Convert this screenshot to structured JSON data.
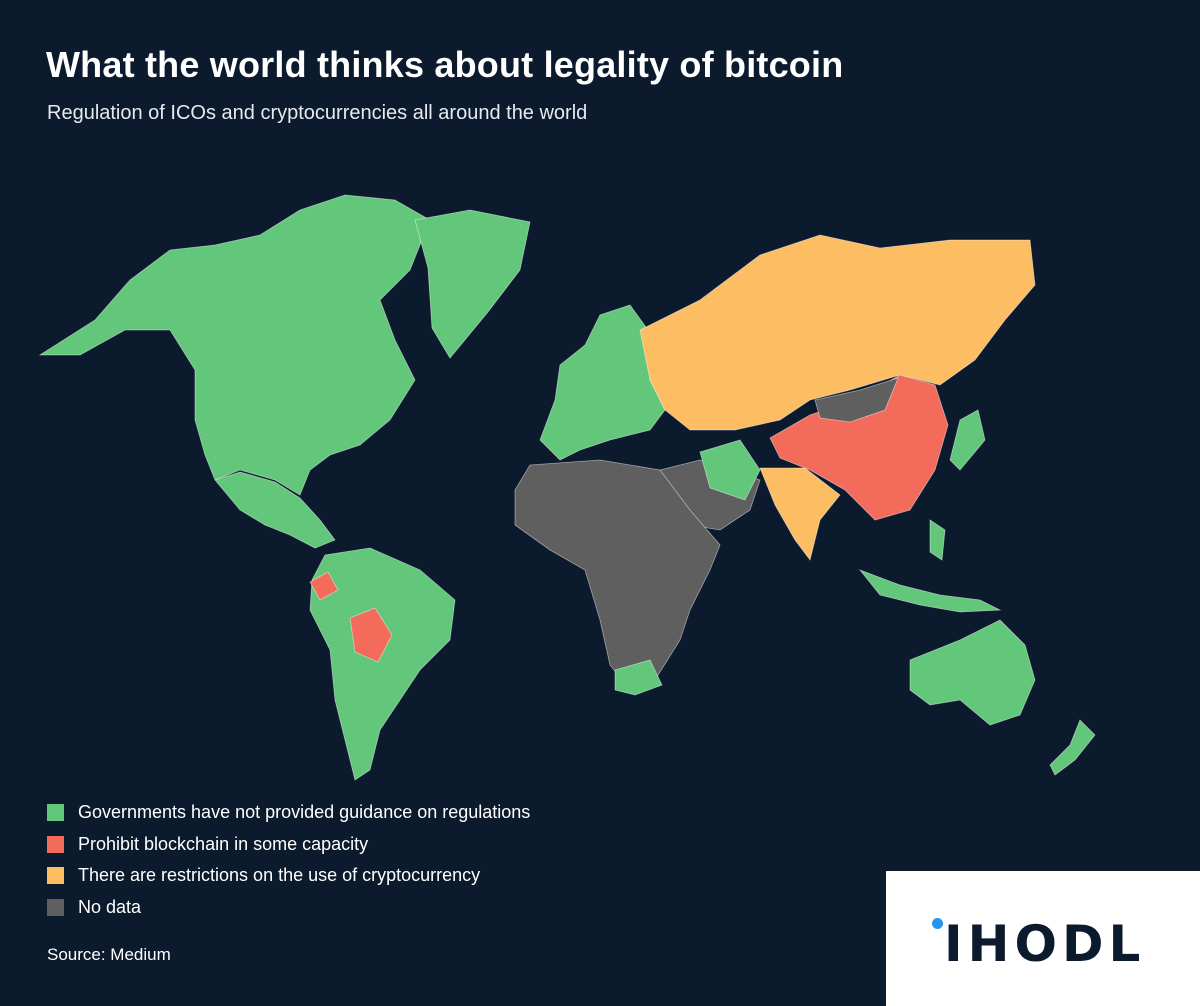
{
  "header": {
    "title": "What the world thinks about legality of bitcoin",
    "subtitle": "Regulation of ICOs and cryptocurrencies all around the world"
  },
  "colors": {
    "background": "#0b1a2c",
    "no_guidance": "#63c77b",
    "prohibit": "#f26b5b",
    "restrictions": "#fdbd62",
    "no_data": "#5f5f60"
  },
  "legend": {
    "items": [
      {
        "label": "Governments have not provided guidance on regulations",
        "color": "#63c77b"
      },
      {
        "label": "Prohibit blockchain in some capacity",
        "color": "#f26b5b"
      },
      {
        "label": "There are restrictions on the use of cryptocurrency",
        "color": "#fdbd62"
      },
      {
        "label": "No data",
        "color": "#5f5f60"
      }
    ]
  },
  "source": "Source:  Medium",
  "brand": {
    "logo_text": "IHODL"
  },
  "regions": [
    {
      "name": "north-america",
      "category": "no_guidance"
    },
    {
      "name": "greenland",
      "category": "no_guidance"
    },
    {
      "name": "mexico-central-america",
      "category": "no_guidance"
    },
    {
      "name": "south-america",
      "category": "no_guidance"
    },
    {
      "name": "ecuador",
      "category": "prohibit"
    },
    {
      "name": "bolivia",
      "category": "prohibit"
    },
    {
      "name": "europe",
      "category": "no_guidance"
    },
    {
      "name": "russia-central-asia",
      "category": "restrictions"
    },
    {
      "name": "china",
      "category": "prohibit"
    },
    {
      "name": "india",
      "category": "restrictions"
    },
    {
      "name": "africa",
      "category": "no_data"
    },
    {
      "name": "middle-east",
      "category": "no_data"
    },
    {
      "name": "mongolia",
      "category": "no_data"
    },
    {
      "name": "iran",
      "category": "no_guidance"
    },
    {
      "name": "south-africa",
      "category": "no_guidance"
    },
    {
      "name": "southeast-asia",
      "category": "no_guidance"
    },
    {
      "name": "japan",
      "category": "no_guidance"
    },
    {
      "name": "australia",
      "category": "no_guidance"
    },
    {
      "name": "new-zealand",
      "category": "no_guidance"
    }
  ]
}
